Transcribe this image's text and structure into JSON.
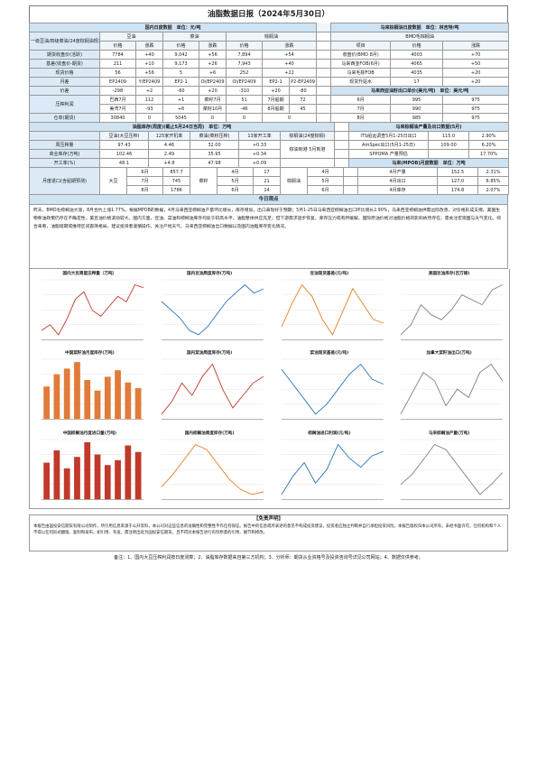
{
  "report_title": "油脂数据日报（2024年5月30日）",
  "domestic": {
    "header": "国内日度数据　单位：元/吨",
    "cols": [
      "豆油",
      "菜油",
      "棕榈油"
    ],
    "price_label": "价格",
    "change_label": "涨跌",
    "spot_header": "一级豆油/四级菜油/24度棕榈油现货",
    "rows": [
      {
        "label": "期货收盘价(活跃)",
        "v": [
          "7784",
          "+40",
          "9,042",
          "+56",
          "7,894",
          "+54"
        ]
      },
      {
        "label": "基差(收盘价-期货)",
        "v": [
          "211",
          "+10",
          "9,173",
          "+26",
          "7,943",
          "+40"
        ]
      },
      {
        "label": "现货价格",
        "v": [
          "56",
          "+56",
          "5",
          "+6",
          "252",
          "+22"
        ]
      },
      {
        "label": "月差",
        "v": [
          "EP2409",
          "Y/EP2409",
          "EP2-1",
          "OI/EP2409",
          "OI/EP2409",
          "EP2-1",
          "P2-EP2409",
          "P2-1"
        ]
      },
      {
        "label": "价差",
        "v": [
          "-298",
          "+2",
          "-60",
          "+20",
          "-310",
          "+20",
          "-80",
          "+6"
        ]
      }
    ],
    "crush_label": "压榨利润",
    "profit_rows": [
      {
        "a": "巴西7月",
        "b": "112",
        "c": "+1",
        "d": "菜籽7月",
        "e": "51",
        "f": "",
        "g": "7月船期",
        "h": "72",
        "i": "+10"
      },
      {
        "a": "美湾7月",
        "b": "-93",
        "c": "+6",
        "d": "菜籽10月",
        "e": "-46",
        "f": "+6",
        "g": "8月船期",
        "h": "45",
        "i": "+18"
      }
    ],
    "basis_row": {
      "label": "仓单(期货)",
      "v": [
        "30840",
        "0",
        "5045",
        "0",
        "0",
        "0"
      ]
    }
  },
  "international": {
    "header": "马来棕榈油日度数据　单位：林吉特/吨",
    "sub_header": "BMD毛棕榈油",
    "col_a": "项目",
    "col_b": "价格",
    "col_c": "涨跌",
    "rows": [
      {
        "label": "收盘价(BMD 8月)",
        "v": [
          "4003",
          "+70"
        ]
      },
      {
        "label": "马来西亚FOB(6月)",
        "v": [
          "4065",
          "+50"
        ]
      },
      {
        "label": "马来毛棕FOB",
        "v": [
          "4035",
          "+20"
        ]
      },
      {
        "label": "现货升贴水",
        "v": [
          "17",
          "+20"
        ]
      }
    ],
    "export_header": "马来西亚油籽出口单价(美元/吨)　单位：美元/吨",
    "export_rows": [
      {
        "label": "6月",
        "a": "995",
        "b": "975"
      },
      {
        "label": "7月",
        "a": "990",
        "b": "975"
      },
      {
        "label": "8月",
        "a": "985",
        "b": "975"
      },
      {
        "label": "9月",
        "a": "980",
        "b": "975"
      }
    ]
  },
  "weekly": {
    "header": "油脂库存(周度)(截止5月24日当周)　单位：万吨",
    "cols": [
      "豆油(大豆压榨)",
      "125家开机率",
      "菜油(菜籽压榨)",
      "13家开工率",
      "棕榈油(24度棕榈)"
    ],
    "rows": [
      {
        "label": "周压榨量",
        "v": [
          "97.43",
          "4.46",
          "32.00",
          "+0.33",
          "棕油到港 5月到港"
        ]
      },
      {
        "label": "商业库存(万吨)",
        "v": [
          "102.46",
          "2.49",
          "35.95",
          "+0.34",
          "52.98"
        ]
      },
      {
        "label": "开工率(%)",
        "v": [
          "48.1",
          "+4.8",
          "47.98",
          "+0.09",
          ""
        ]
      }
    ],
    "right_header": "马来棕榈油产量及出口数据(5月)",
    "right_rows": [
      {
        "label": "ITS船运调查5月1-25日出口",
        "a": "115.0",
        "b": "2.90%"
      },
      {
        "label": "AmSpec出口(5月1-25日)",
        "a": "109.00",
        "b": "6.20%"
      },
      {
        "label": "SPPOMA 产量预估",
        "a": "",
        "b": "17.70%"
      }
    ],
    "mpob_header": "马来(MPOB)月度数据　单位：万吨",
    "mpob_rows": [
      {
        "label": "4月产量",
        "a": "152.5",
        "b": "2.31%"
      },
      {
        "label": "4月出口",
        "a": "127.0",
        "b": "6.85%"
      },
      {
        "label": "4月库存",
        "a": "174.8",
        "b": "2.07%"
      }
    ]
  },
  "monthly": {
    "label": "月度进口(含船期预测)",
    "left_rows": [
      {
        "m": "6月",
        "v": "857.7"
      },
      {
        "m": "7月",
        "v": "745"
      },
      {
        "m": "8月",
        "v": "1786"
      }
    ],
    "cats": [
      "大豆",
      "菜籽",
      "棕榈油"
    ],
    "mid_rows": [
      {
        "m": "4月",
        "v": "17"
      },
      {
        "m": "5月",
        "v": "21"
      },
      {
        "m": "6月",
        "v": "14"
      }
    ],
    "right_rows": [
      {
        "m": "4月",
        "v": "14.79"
      },
      {
        "m": "5月",
        "v": "29.20"
      },
      {
        "m": "6月",
        "v": "27.50"
      }
    ]
  },
  "summary": {
    "header": "今日观点",
    "text": "昨天，BMD毛棕榈油大涨，8月合约上涨1.77%。根据MPOB的数据，4月马来西亚棕榈油产量环比增长，库存增加，出口表现好于预期；5月1-25日马来西亚棕榈油出口环比增长2.90%，马来西亚棕榈油供需边际改善，对价格形成支撑。美国生物柴油政策仍存在不确定性，美豆油价格波动较大。国内方面，豆油、菜油和棕榈油库存均处于较高水平，油脂整体供应充足；但下游需求逐步恢复，库存压力或有所缓解。国际原油价格对油脂价格的影响依然存在，需关注宏观面与天气变化。综合来看，油脂短期或维持区间震荡格局，建议投资者谨慎操作，关注产地天气、马来西亚棕榈油出口数据以及国内油脂库存变化情况。"
  },
  "charts": [
    {
      "title": "国内大豆周度压榨量（万吨）",
      "type": "line",
      "color": "#c0392b",
      "series": [
        [
          88,
          92,
          85,
          96,
          110,
          115,
          102,
          98,
          105,
          112,
          108,
          120,
          118
        ]
      ]
    },
    {
      "title": "国内豆油周度库存(万吨)",
      "type": "line",
      "color": "#2e75b6",
      "series": [
        [
          96,
          92,
          88,
          82,
          80,
          84,
          90,
          96,
          100,
          104,
          100,
          102
        ]
      ]
    },
    {
      "title": "豆油现货基差(元/吨)",
      "type": "line",
      "color": "#e67e22",
      "series": [
        [
          200,
          260,
          310,
          280,
          220,
          180,
          240,
          300,
          260,
          220,
          210
        ]
      ]
    },
    {
      "title": "美国豆油库存(百万磅)",
      "type": "line",
      "color": "#7f7f7f",
      "series": [
        [
          1800,
          1900,
          2100,
          2000,
          1950,
          2050,
          2200,
          2150,
          2100,
          2250,
          2300
        ]
      ]
    },
    {
      "title": "中国菜籽油月度库存(万吨)",
      "type": "bar",
      "color": "#e07b39",
      "series": [
        [
          40,
          55,
          62,
          70,
          48,
          35,
          52,
          60,
          45,
          38
        ]
      ]
    },
    {
      "title": "国内菜油周度库存(万吨)",
      "type": "line",
      "color": "#c0392b",
      "series": [
        [
          30,
          32,
          35,
          33,
          36,
          38,
          34,
          31,
          33,
          35,
          36
        ]
      ]
    },
    {
      "title": "菜油现货基差(元/吨)",
      "type": "line",
      "color": "#2e75b6",
      "series": [
        [
          150,
          120,
          90,
          60,
          80,
          110,
          140,
          160,
          130,
          120
        ]
      ]
    },
    {
      "title": "加拿大菜籽油出口(万吨)",
      "type": "line",
      "color": "#7f7f7f",
      "series": [
        [
          20,
          25,
          30,
          28,
          22,
          26,
          24,
          30,
          32,
          28
        ]
      ]
    },
    {
      "title": "中国棕榈油月度进口量(万吨)",
      "type": "bar",
      "color": "#c0392b",
      "series": [
        [
          45,
          60,
          38,
          52,
          70,
          55,
          42,
          48,
          66,
          58
        ]
      ]
    },
    {
      "title": "国内棕榈油周度库存(万吨)",
      "type": "line",
      "color": "#e67e22",
      "series": [
        [
          55,
          60,
          66,
          72,
          70,
          64,
          58,
          54,
          52,
          53
        ]
      ]
    },
    {
      "title": "棕榈油进口利润(元/吨)",
      "type": "line",
      "color": "#2e75b6",
      "series": [
        [
          -200,
          -120,
          -60,
          -150,
          -90,
          20,
          -40,
          -80,
          -30,
          -10
        ]
      ]
    },
    {
      "title": "马来棕榈油产量(万吨)",
      "type": "line",
      "color": "#7f7f7f",
      "series": [
        [
          140,
          150,
          165,
          180,
          175,
          160,
          145,
          130,
          140,
          152
        ]
      ]
    }
  ],
  "risk": {
    "header": "【免责声明】",
    "text": "本报告由国投安信期货有限公司制作，所引用信息来源于公开资料，本公司对这些信息的准确性和完整性不作任何保证。报告中的信息或所表述的意见不构成投资建议，投资者应独立判断并自行承担投资风险。本报告版权归本公司所有，未经书面许可，任何机构和个人不得以任何形式翻版、复制和发布。如引用、刊发，需注明出处为国投安信期货，且不得对本报告进行有悖原意的引用、删节和修改。"
  },
  "footnote": "备注：1、国内大豆压榨利润按日度测算；2、油脂库存数据来自第三方机构；3、分析师：期货从业资格号及投资咨询号详见公司网站；4、数据仅供参考。"
}
